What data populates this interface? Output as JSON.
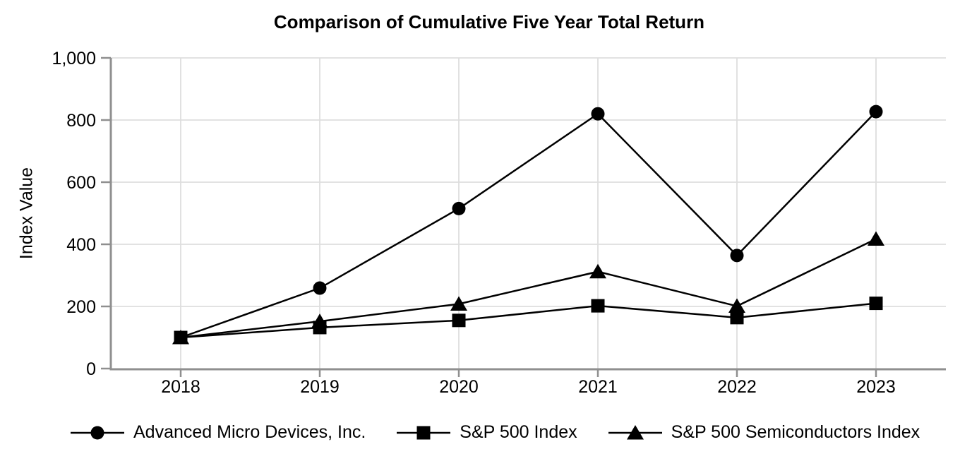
{
  "chart_data": {
    "type": "line",
    "title": "Comparison of Cumulative Five Year Total Return",
    "ylabel": "Index Value",
    "xlabel": "",
    "categories": [
      "2018",
      "2019",
      "2020",
      "2021",
      "2022",
      "2023"
    ],
    "series": [
      {
        "name": "Advanced Micro Devices, Inc.",
        "marker": "circle",
        "values": [
          100,
          259,
          515,
          820,
          364,
          827
        ]
      },
      {
        "name": "S&P 500 Index",
        "marker": "square",
        "values": [
          100,
          132,
          155,
          202,
          164,
          210
        ]
      },
      {
        "name": "S&P 500 Semiconductors Index",
        "marker": "triangle",
        "values": [
          100,
          152,
          208,
          312,
          201,
          417
        ]
      }
    ],
    "ylim": [
      0,
      1000
    ],
    "yticks": [
      0,
      200,
      400,
      600,
      800,
      1000
    ],
    "ytick_labels": [
      "0",
      "200",
      "400",
      "600",
      "800",
      "1,000"
    ],
    "grid": true,
    "legend_position": "bottom",
    "colors": {
      "series": "#000000",
      "grid": "#dedede",
      "axis": "#8f8f8f",
      "text": "#000000",
      "background": "#ffffff"
    }
  }
}
